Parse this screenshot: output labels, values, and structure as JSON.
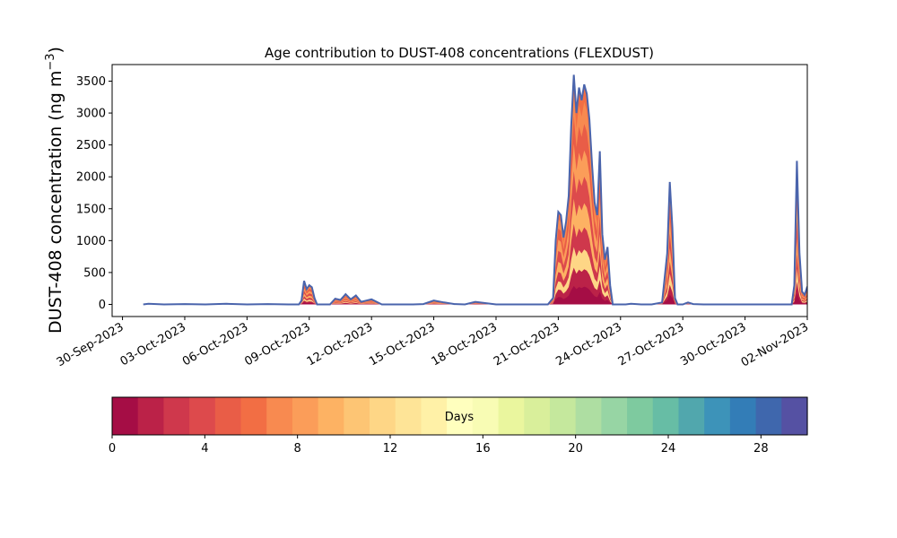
{
  "chart_data": {
    "type": "area",
    "title": "Age contribution to DUST-408 concentrations (FLEXDUST)",
    "ylabel": "DUST-408 concentration (ng m",
    "ylabel_sup": "−3",
    "ylabel_close": ")",
    "xlim": [
      "2023-09-29T12:00",
      "2023-11-02T00:00"
    ],
    "ylim": [
      -190,
      3760
    ],
    "yticks": [
      0,
      500,
      1000,
      1500,
      2000,
      2500,
      3000,
      3500
    ],
    "xticks": [
      "2023-09-30",
      "2023-10-03",
      "2023-10-06",
      "2023-10-09",
      "2023-10-12",
      "2023-10-15",
      "2023-10-18",
      "2023-10-21",
      "2023-10-24",
      "2023-10-27",
      "2023-10-30",
      "2023-11-02"
    ],
    "xtick_labels": [
      "30-Sep-2023",
      "03-Oct-2023",
      "06-Oct-2023",
      "09-Oct-2023",
      "12-Oct-2023",
      "15-Oct-2023",
      "18-Oct-2023",
      "21-Oct-2023",
      "24-Oct-2023",
      "27-Oct-2023",
      "30-Oct-2023",
      "02-Nov-2023"
    ],
    "total_line_color": "#4a64ac",
    "series_total": {
      "x": [
        "2023-10-01T00:00",
        "2023-10-01T06:00",
        "2023-10-02T00:00",
        "2023-10-03T00:00",
        "2023-10-04T00:00",
        "2023-10-05T00:00",
        "2023-10-06T00:00",
        "2023-10-07T00:00",
        "2023-10-08T00:00",
        "2023-10-08T12:00",
        "2023-10-08T15:00",
        "2023-10-08T18:00",
        "2023-10-08T21:00",
        "2023-10-09T00:00",
        "2023-10-09T03:00",
        "2023-10-09T06:00",
        "2023-10-09T09:00",
        "2023-10-09T12:00",
        "2023-10-10T00:00",
        "2023-10-10T06:00",
        "2023-10-10T12:00",
        "2023-10-10T18:00",
        "2023-10-11T00:00",
        "2023-10-11T06:00",
        "2023-10-11T12:00",
        "2023-10-11T18:00",
        "2023-10-12T00:00",
        "2023-10-12T12:00",
        "2023-10-13T00:00",
        "2023-10-14T00:00",
        "2023-10-14T12:00",
        "2023-10-15T00:00",
        "2023-10-15T12:00",
        "2023-10-16T00:00",
        "2023-10-16T12:00",
        "2023-10-17T00:00",
        "2023-10-18T00:00",
        "2023-10-19T00:00",
        "2023-10-20T00:00",
        "2023-10-20T12:00",
        "2023-10-20T18:00",
        "2023-10-20T21:00",
        "2023-10-21T00:00",
        "2023-10-21T03:00",
        "2023-10-21T06:00",
        "2023-10-21T09:00",
        "2023-10-21T12:00",
        "2023-10-21T15:00",
        "2023-10-21T18:00",
        "2023-10-21T21:00",
        "2023-10-22T00:00",
        "2023-10-22T03:00",
        "2023-10-22T06:00",
        "2023-10-22T09:00",
        "2023-10-22T12:00",
        "2023-10-22T15:00",
        "2023-10-22T18:00",
        "2023-10-22T21:00",
        "2023-10-23T00:00",
        "2023-10-23T03:00",
        "2023-10-23T06:00",
        "2023-10-23T09:00",
        "2023-10-23T12:00",
        "2023-10-23T15:00",
        "2023-10-23T18:00",
        "2023-10-23T21:00",
        "2023-10-24T00:00",
        "2023-10-24T06:00",
        "2023-10-24T12:00",
        "2023-10-25T00:00",
        "2023-10-25T12:00",
        "2023-10-26T00:00",
        "2023-10-26T06:00",
        "2023-10-26T09:00",
        "2023-10-26T12:00",
        "2023-10-26T15:00",
        "2023-10-26T18:00",
        "2023-10-27T00:00",
        "2023-10-27T06:00",
        "2023-10-27T12:00",
        "2023-10-28T00:00",
        "2023-10-29T00:00",
        "2023-10-30T00:00",
        "2023-10-31T00:00",
        "2023-10-31T12:00",
        "2023-11-01T00:00",
        "2023-11-01T06:00",
        "2023-11-01T09:00",
        "2023-11-01T12:00",
        "2023-11-01T15:00",
        "2023-11-01T18:00",
        "2023-11-01T21:00",
        "2023-11-02T00:00"
      ],
      "y": [
        0,
        10,
        0,
        5,
        0,
        10,
        0,
        5,
        0,
        0,
        60,
        370,
        240,
        300,
        270,
        100,
        0,
        0,
        0,
        90,
        70,
        160,
        80,
        140,
        40,
        60,
        80,
        0,
        0,
        0,
        5,
        60,
        30,
        5,
        0,
        40,
        0,
        0,
        0,
        0,
        100,
        1000,
        1450,
        1400,
        1050,
        1300,
        1700,
        2800,
        3600,
        3000,
        3400,
        3200,
        3450,
        3300,
        2900,
        2200,
        1600,
        1400,
        2400,
        1100,
        700,
        900,
        300,
        0,
        0,
        0,
        0,
        0,
        10,
        0,
        0,
        30,
        800,
        1920,
        1200,
        100,
        0,
        0,
        30,
        5,
        0,
        0,
        0,
        0,
        0,
        0,
        0,
        300,
        2250,
        800,
        200,
        150,
        280
      ]
    },
    "colorbar": {
      "label": "Days",
      "min": 0,
      "max": 30,
      "ticks": [
        0,
        4,
        8,
        12,
        16,
        20,
        24,
        28
      ],
      "colors": [
        "#a50d45",
        "#bb2248",
        "#cf384c",
        "#dd4a4c",
        "#e95d47",
        "#f26e44",
        "#f88a50",
        "#fb9d59",
        "#fdb263",
        "#fdc574",
        "#fed686",
        "#fee497",
        "#fff1a7",
        "#ffffbe",
        "#f8fcb4",
        "#eaf69e",
        "#d9ef9b",
        "#c5e89d",
        "#aedea2",
        "#97d5a4",
        "#7eca9f",
        "#67bda5",
        "#51a7ad",
        "#3d93b9",
        "#337db7",
        "#3f67ad",
        "#5551a3"
      ]
    }
  }
}
